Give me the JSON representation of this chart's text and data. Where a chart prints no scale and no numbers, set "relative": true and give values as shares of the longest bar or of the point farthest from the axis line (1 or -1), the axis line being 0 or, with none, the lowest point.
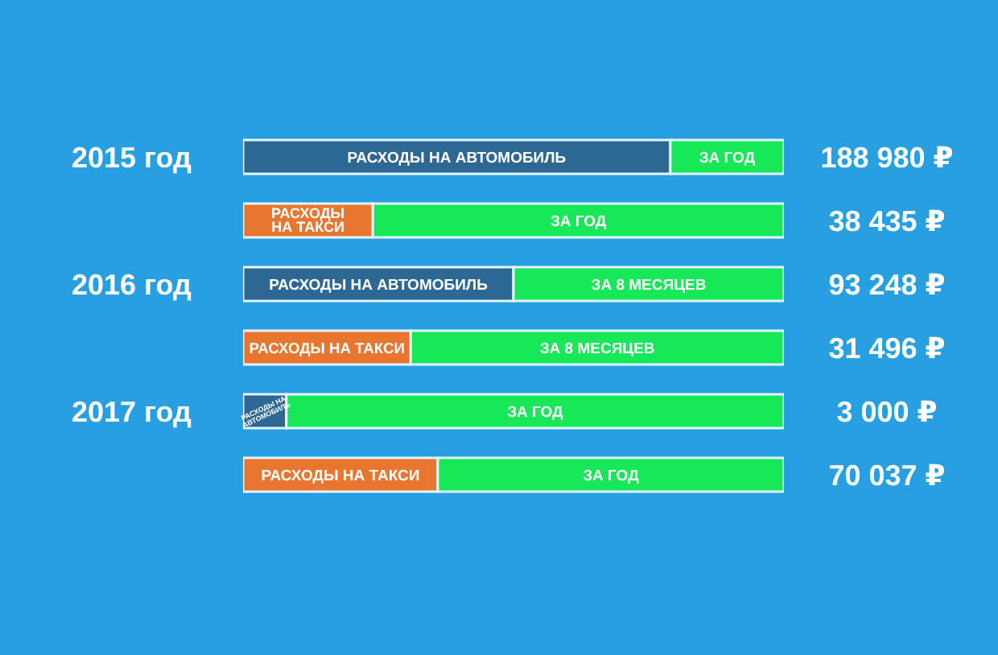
{
  "chart_data": {
    "type": "bar",
    "orientation": "horizontal",
    "stacked": true,
    "relative": true,
    "categories": [
      "2015 год",
      null,
      "2016 год",
      null,
      "2017 год",
      null
    ],
    "series": [
      {
        "name": "РАСХОДЫ НА АВТОМОБИЛЬ",
        "color": "#2d6894",
        "values": [
          0.79,
          null,
          0.5,
          null,
          0.08,
          null
        ]
      },
      {
        "name": "РАСХОДЫ НА ТАКСИ",
        "color": "#e9762e",
        "values": [
          null,
          0.24,
          null,
          0.31,
          null,
          0.36
        ]
      },
      {
        "name": "ЗА ГОД",
        "color": "#16e857",
        "values": [
          0.21,
          0.76,
          null,
          null,
          0.92,
          0.64
        ]
      },
      {
        "name": "ЗА 8 МЕСЯЦЕВ",
        "color": "#16e857",
        "values": [
          null,
          null,
          0.5,
          0.69,
          null,
          null
        ]
      }
    ],
    "annotations": [
      "188 980 ₽",
      "38 435 ₽",
      "93 248 ₽",
      "31 496 ₽",
      "3 000 ₽",
      "70 037 ₽"
    ]
  }
}
